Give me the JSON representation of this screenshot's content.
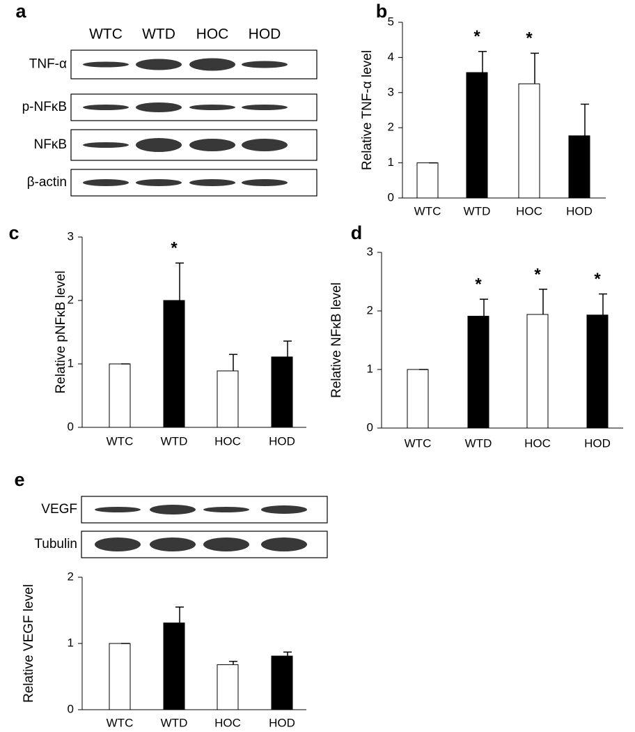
{
  "blots": [
    {
      "panel": "a",
      "lanes": [
        "WTC",
        "WTD",
        "HOC",
        "HOD"
      ],
      "rows": [
        "TNF-α",
        "p-NFκB",
        "NFκB",
        "β-actin"
      ]
    },
    {
      "panel": "e",
      "rows": [
        "VEGF",
        "Tubulin"
      ]
    }
  ],
  "chart_data": [
    {
      "type": "bar",
      "panel": "b",
      "y_label": "Relative TNF-α level",
      "categories": [
        "WTC",
        "WTD",
        "HOC",
        "HOD"
      ],
      "values": [
        1,
        3.57,
        3.25,
        1.77
      ],
      "errors": [
        0,
        0.6,
        0.87,
        0.9
      ],
      "colors": [
        "#ffffff",
        "#000000",
        "#ffffff",
        "#000000"
      ],
      "ylim": [
        0,
        5
      ],
      "yticks": [
        0,
        1,
        2,
        3,
        4,
        5
      ],
      "annotations": [
        {
          "text": "*",
          "x": "WTD"
        },
        {
          "text": "*",
          "x": "HOC"
        }
      ]
    },
    {
      "type": "bar",
      "panel": "c",
      "y_label": "Relative pNFκB level",
      "categories": [
        "WTC",
        "WTD",
        "HOC",
        "HOD"
      ],
      "values": [
        1,
        2.0,
        0.89,
        1.11
      ],
      "errors": [
        0,
        0.59,
        0.26,
        0.25
      ],
      "colors": [
        "#ffffff",
        "#000000",
        "#ffffff",
        "#000000"
      ],
      "ylim": [
        0,
        3
      ],
      "yticks": [
        0,
        1,
        2,
        3
      ],
      "annotations": [
        {
          "text": "*",
          "x": "WTD"
        }
      ]
    },
    {
      "type": "bar",
      "panel": "d",
      "y_label": "Relative NFκB level",
      "categories": [
        "WTC",
        "WTD",
        "HOC",
        "HOD"
      ],
      "values": [
        1,
        1.91,
        1.94,
        1.93
      ],
      "errors": [
        0,
        0.29,
        0.43,
        0.36
      ],
      "colors": [
        "#ffffff",
        "#000000",
        "#ffffff",
        "#000000"
      ],
      "ylim": [
        0,
        3
      ],
      "yticks": [
        0,
        1,
        2,
        3
      ],
      "annotations": [
        {
          "text": "*",
          "x": "WTD"
        },
        {
          "text": "*",
          "x": "HOC"
        },
        {
          "text": "*",
          "x": "HOD"
        }
      ]
    },
    {
      "type": "bar",
      "y_label": "Relative VEGF level",
      "categories": [
        "WTC",
        "WTD",
        "HOC",
        "HOD"
      ],
      "values": [
        1,
        1.31,
        0.68,
        0.81
      ],
      "errors": [
        0,
        0.24,
        0.05,
        0.06
      ],
      "colors": [
        "#ffffff",
        "#000000",
        "#ffffff",
        "#000000"
      ],
      "ylim": [
        0,
        2
      ],
      "yticks": [
        0,
        1,
        2
      ]
    }
  ]
}
